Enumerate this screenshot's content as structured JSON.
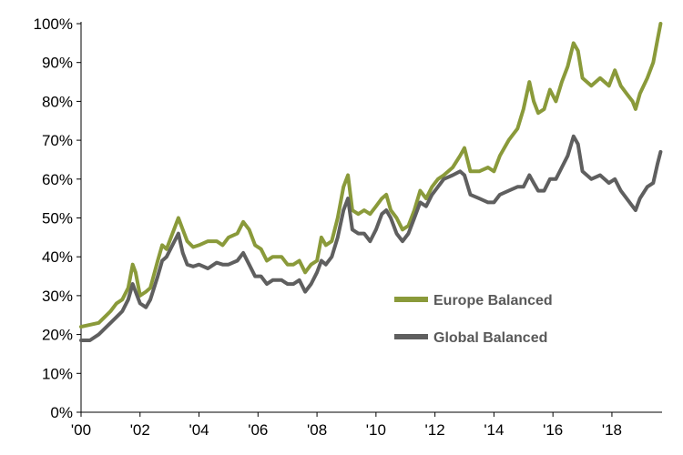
{
  "chart_data": {
    "type": "line",
    "title": "",
    "xlabel": "",
    "ylabel": "",
    "x_ticks": [
      "'00",
      "'02",
      "'04",
      "'06",
      "'08",
      "'10",
      "'12",
      "'14",
      "'16",
      "'18"
    ],
    "y_ticks": [
      "0%",
      "10%",
      "20%",
      "30%",
      "40%",
      "50%",
      "60%",
      "70%",
      "80%",
      "90%",
      "100%"
    ],
    "xlim": [
      2000.0,
      2019.7
    ],
    "ylim": [
      0,
      100
    ],
    "y_unit": "%",
    "grid": false,
    "legend_position": "lower-right",
    "series": [
      {
        "name": "Europe Balanced",
        "color": "#8a9a3a",
        "points": [
          [
            2000.0,
            22
          ],
          [
            2000.3,
            22.5
          ],
          [
            2000.6,
            23
          ],
          [
            2000.8,
            24.5
          ],
          [
            2001.0,
            26
          ],
          [
            2001.2,
            28
          ],
          [
            2001.4,
            29
          ],
          [
            2001.6,
            32
          ],
          [
            2001.75,
            38
          ],
          [
            2001.85,
            36
          ],
          [
            2002.0,
            30
          ],
          [
            2002.2,
            31
          ],
          [
            2002.35,
            32
          ],
          [
            2002.6,
            39
          ],
          [
            2002.75,
            43
          ],
          [
            2002.9,
            42
          ],
          [
            2003.1,
            46
          ],
          [
            2003.3,
            50
          ],
          [
            2003.45,
            47
          ],
          [
            2003.6,
            44
          ],
          [
            2003.8,
            42.5
          ],
          [
            2004.0,
            43
          ],
          [
            2004.3,
            44
          ],
          [
            2004.6,
            44
          ],
          [
            2004.8,
            43
          ],
          [
            2005.0,
            45
          ],
          [
            2005.3,
            46
          ],
          [
            2005.5,
            49
          ],
          [
            2005.7,
            47
          ],
          [
            2005.9,
            43
          ],
          [
            2006.1,
            42
          ],
          [
            2006.3,
            39
          ],
          [
            2006.5,
            40
          ],
          [
            2006.8,
            40
          ],
          [
            2007.0,
            38
          ],
          [
            2007.2,
            38
          ],
          [
            2007.4,
            39
          ],
          [
            2007.6,
            36
          ],
          [
            2007.8,
            38
          ],
          [
            2008.0,
            39
          ],
          [
            2008.15,
            45
          ],
          [
            2008.3,
            43
          ],
          [
            2008.5,
            44
          ],
          [
            2008.7,
            50
          ],
          [
            2008.9,
            58
          ],
          [
            2009.05,
            61
          ],
          [
            2009.2,
            52
          ],
          [
            2009.4,
            51
          ],
          [
            2009.6,
            52
          ],
          [
            2009.8,
            51
          ],
          [
            2010.0,
            53
          ],
          [
            2010.2,
            55
          ],
          [
            2010.35,
            56
          ],
          [
            2010.5,
            52
          ],
          [
            2010.7,
            50
          ],
          [
            2010.9,
            47
          ],
          [
            2011.1,
            48
          ],
          [
            2011.3,
            52
          ],
          [
            2011.5,
            57
          ],
          [
            2011.7,
            55
          ],
          [
            2011.9,
            58
          ],
          [
            2012.1,
            60
          ],
          [
            2012.3,
            61
          ],
          [
            2012.6,
            63
          ],
          [
            2012.85,
            66
          ],
          [
            2013.0,
            68
          ],
          [
            2013.2,
            62
          ],
          [
            2013.5,
            62
          ],
          [
            2013.8,
            63
          ],
          [
            2014.0,
            62
          ],
          [
            2014.2,
            66
          ],
          [
            2014.5,
            70
          ],
          [
            2014.8,
            73
          ],
          [
            2015.0,
            78
          ],
          [
            2015.2,
            85
          ],
          [
            2015.35,
            80
          ],
          [
            2015.5,
            77
          ],
          [
            2015.7,
            78
          ],
          [
            2015.9,
            83
          ],
          [
            2016.1,
            80
          ],
          [
            2016.3,
            85
          ],
          [
            2016.5,
            89
          ],
          [
            2016.7,
            95
          ],
          [
            2016.85,
            93
          ],
          [
            2017.0,
            86
          ],
          [
            2017.3,
            84
          ],
          [
            2017.6,
            86
          ],
          [
            2017.9,
            84
          ],
          [
            2018.1,
            88
          ],
          [
            2018.3,
            84
          ],
          [
            2018.5,
            82
          ],
          [
            2018.7,
            80
          ],
          [
            2018.8,
            78
          ],
          [
            2018.95,
            82
          ],
          [
            2019.2,
            86
          ],
          [
            2019.4,
            90
          ],
          [
            2019.55,
            96
          ],
          [
            2019.65,
            100
          ]
        ]
      },
      {
        "name": "Global Balanced",
        "color": "#5f5f5f",
        "points": [
          [
            2000.0,
            18.5
          ],
          [
            2000.3,
            18.5
          ],
          [
            2000.6,
            20
          ],
          [
            2000.8,
            21.5
          ],
          [
            2001.0,
            23
          ],
          [
            2001.2,
            24.5
          ],
          [
            2001.4,
            26
          ],
          [
            2001.6,
            29
          ],
          [
            2001.75,
            33
          ],
          [
            2001.85,
            31
          ],
          [
            2002.0,
            28
          ],
          [
            2002.2,
            27
          ],
          [
            2002.35,
            29
          ],
          [
            2002.6,
            35
          ],
          [
            2002.75,
            39
          ],
          [
            2002.9,
            40
          ],
          [
            2003.1,
            43
          ],
          [
            2003.3,
            46
          ],
          [
            2003.45,
            41
          ],
          [
            2003.6,
            38
          ],
          [
            2003.8,
            37.5
          ],
          [
            2004.0,
            38
          ],
          [
            2004.3,
            37
          ],
          [
            2004.6,
            38.5
          ],
          [
            2004.8,
            38
          ],
          [
            2005.0,
            38
          ],
          [
            2005.3,
            39
          ],
          [
            2005.5,
            41
          ],
          [
            2005.7,
            38
          ],
          [
            2005.9,
            35
          ],
          [
            2006.1,
            35
          ],
          [
            2006.3,
            33
          ],
          [
            2006.5,
            34
          ],
          [
            2006.8,
            34
          ],
          [
            2007.0,
            33
          ],
          [
            2007.2,
            33
          ],
          [
            2007.4,
            34
          ],
          [
            2007.6,
            31
          ],
          [
            2007.8,
            33
          ],
          [
            2008.0,
            36
          ],
          [
            2008.15,
            39
          ],
          [
            2008.3,
            38
          ],
          [
            2008.5,
            40
          ],
          [
            2008.7,
            45
          ],
          [
            2008.9,
            52
          ],
          [
            2009.05,
            55
          ],
          [
            2009.2,
            47
          ],
          [
            2009.4,
            46
          ],
          [
            2009.6,
            46
          ],
          [
            2009.8,
            44
          ],
          [
            2010.0,
            47
          ],
          [
            2010.2,
            51
          ],
          [
            2010.35,
            52
          ],
          [
            2010.5,
            50
          ],
          [
            2010.7,
            46
          ],
          [
            2010.9,
            44
          ],
          [
            2011.1,
            46
          ],
          [
            2011.3,
            50
          ],
          [
            2011.5,
            54
          ],
          [
            2011.7,
            53
          ],
          [
            2011.9,
            56
          ],
          [
            2012.1,
            58
          ],
          [
            2012.3,
            60
          ],
          [
            2012.6,
            61
          ],
          [
            2012.85,
            62
          ],
          [
            2013.0,
            61
          ],
          [
            2013.2,
            56
          ],
          [
            2013.5,
            55
          ],
          [
            2013.8,
            54
          ],
          [
            2014.0,
            54
          ],
          [
            2014.2,
            56
          ],
          [
            2014.5,
            57
          ],
          [
            2014.8,
            58
          ],
          [
            2015.0,
            58
          ],
          [
            2015.2,
            61
          ],
          [
            2015.35,
            59
          ],
          [
            2015.5,
            57
          ],
          [
            2015.7,
            57
          ],
          [
            2015.9,
            60
          ],
          [
            2016.1,
            60
          ],
          [
            2016.3,
            63
          ],
          [
            2016.5,
            66
          ],
          [
            2016.7,
            71
          ],
          [
            2016.85,
            69
          ],
          [
            2017.0,
            62
          ],
          [
            2017.3,
            60
          ],
          [
            2017.6,
            61
          ],
          [
            2017.9,
            59
          ],
          [
            2018.1,
            60
          ],
          [
            2018.3,
            57
          ],
          [
            2018.5,
            55
          ],
          [
            2018.7,
            53
          ],
          [
            2018.8,
            52
          ],
          [
            2018.95,
            55
          ],
          [
            2019.2,
            58
          ],
          [
            2019.4,
            59
          ],
          [
            2019.55,
            64
          ],
          [
            2019.65,
            67
          ]
        ]
      }
    ]
  }
}
